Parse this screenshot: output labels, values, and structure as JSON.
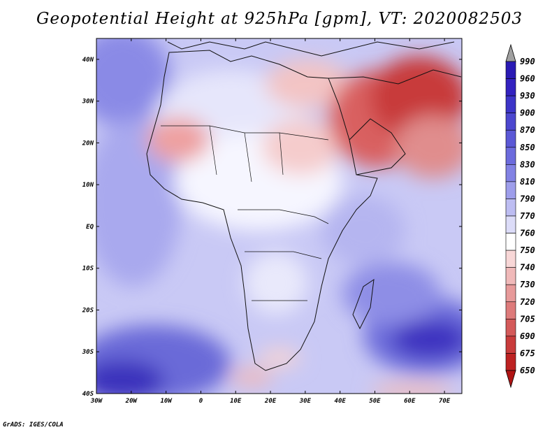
{
  "title": "Geopotential Height at 925hPa [gpm], VT: 2020082503",
  "credit": "GrADS: IGES/COLA",
  "map": {
    "lon_ticks": [
      "30W",
      "20W",
      "10W",
      "0",
      "10E",
      "20E",
      "30E",
      "40E",
      "50E",
      "60E",
      "70E"
    ],
    "lat_ticks": [
      "40N",
      "30N",
      "20N",
      "10N",
      "EQ",
      "10S",
      "20S",
      "30S",
      "40S"
    ],
    "lon_range": [
      -30,
      75
    ],
    "lat_range": [
      -40,
      45
    ]
  },
  "colorbar": {
    "labels": [
      "990",
      "960",
      "930",
      "900",
      "870",
      "850",
      "830",
      "810",
      "790",
      "770",
      "760",
      "750",
      "740",
      "730",
      "720",
      "705",
      "690",
      "675",
      "650"
    ],
    "colors": [
      "#1f0a9c",
      "#2a1ab4",
      "#3322c0",
      "#3d35c8",
      "#4c47cf",
      "#5b58d6",
      "#6c6bdd",
      "#8282e4",
      "#9e9eeb",
      "#bdbdf2",
      "#dcdcf8",
      "#ffffff",
      "#f8d7d7",
      "#f0b9b9",
      "#e79a9a",
      "#de7b7b",
      "#d45a5a",
      "#c93c3c",
      "#bd2222",
      "#b01414"
    ]
  }
}
